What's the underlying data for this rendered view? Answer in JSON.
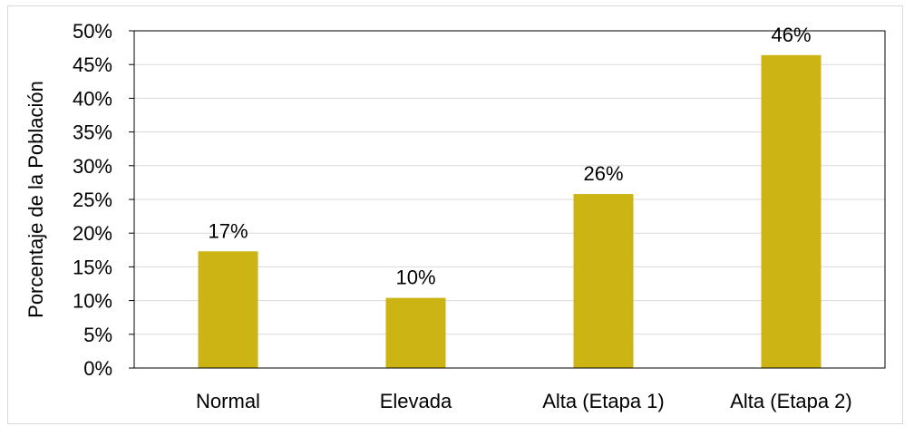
{
  "chart_data": {
    "type": "bar",
    "title": "",
    "xlabel": "",
    "ylabel": "Porcentaje de la Población",
    "categories": [
      "Normal",
      "Elevada",
      "Alta (Etapa 1)",
      "Alta (Etapa 2)"
    ],
    "values": [
      17.3,
      10.4,
      25.8,
      46.4
    ],
    "data_labels": [
      "17%",
      "10%",
      "26%",
      "46%"
    ],
    "ylim": [
      0,
      50
    ],
    "yticks": [
      0,
      5,
      10,
      15,
      20,
      25,
      30,
      35,
      40,
      45,
      50
    ],
    "ytick_labels": [
      "0%",
      "5%",
      "10%",
      "15%",
      "20%",
      "25%",
      "30%",
      "35%",
      "40%",
      "45%",
      "50%"
    ],
    "grid": true,
    "legend": "none",
    "bar_color": "#CCB414"
  }
}
